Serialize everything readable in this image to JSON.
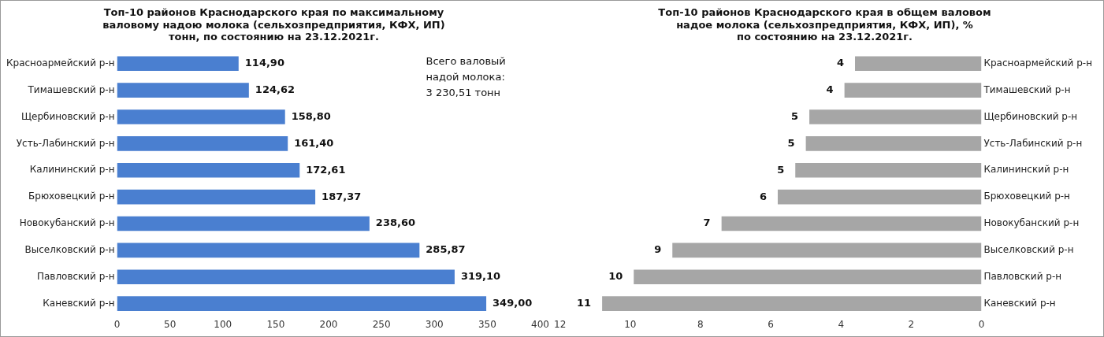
{
  "chart_data": [
    {
      "type": "bar",
      "orientation": "horizontal",
      "title": "Топ-10 районов Краснодарского края по максимальному\nваловому надою молока (сельхозпредприятия, КФХ, ИП)\nтонн, по состоянию на 23.12.2021г.",
      "categories": [
        "Красноармейский р-н",
        "Тимашевский р-н",
        "Щербиновский р-н",
        "Усть-Лабинский р-н",
        "Калининский р-н",
        "Брюховецкий р-н",
        "Новокубанский р-н",
        "Выселковский р-н",
        "Павловский р-н",
        "Каневский р-н"
      ],
      "values": [
        114.9,
        124.62,
        158.8,
        161.4,
        172.61,
        187.37,
        238.6,
        285.87,
        319.1,
        349.0
      ],
      "value_labels": [
        "114,90",
        "124,62",
        "158,80",
        "161,40",
        "172,61",
        "187,37",
        "238,60",
        "285,87",
        "319,10",
        "349,00"
      ],
      "color": "#4a7fd0",
      "xlim": [
        0,
        400
      ],
      "xticks": [
        0,
        50,
        100,
        150,
        200,
        250,
        300,
        350,
        400
      ],
      "grid": false,
      "legend": false,
      "annotations": [
        "Всего валовый\nнадой молока:\n3 230,51 тонн"
      ]
    },
    {
      "type": "bar",
      "orientation": "horizontal",
      "title": "Топ-10 районов Краснодарского края в общем валовом\nнадое молока (сельхозпредприятия, КФХ, ИП), %\nпо состоянию на 23.12.2021г.",
      "categories": [
        "Красноармейский р-н",
        "Тимашевский р-н",
        "Щербиновский р-н",
        "Усть-Лабинский р-н",
        "Калининский р-н",
        "Брюховецкий р-н",
        "Новокубанский р-н",
        "Выселковский р-н",
        "Павловский р-н",
        "Каневский р-н"
      ],
      "values": [
        3.6,
        3.9,
        4.9,
        5.0,
        5.3,
        5.8,
        7.4,
        8.8,
        9.9,
        10.8
      ],
      "value_labels": [
        "4",
        "4",
        "5",
        "5",
        "5",
        "6",
        "7",
        "9",
        "10",
        "11"
      ],
      "color": "#a6a6a6",
      "xlim": [
        12,
        0
      ],
      "xticks": [
        12,
        10,
        8,
        6,
        4,
        2,
        0
      ],
      "grid": false,
      "legend": false
    }
  ]
}
